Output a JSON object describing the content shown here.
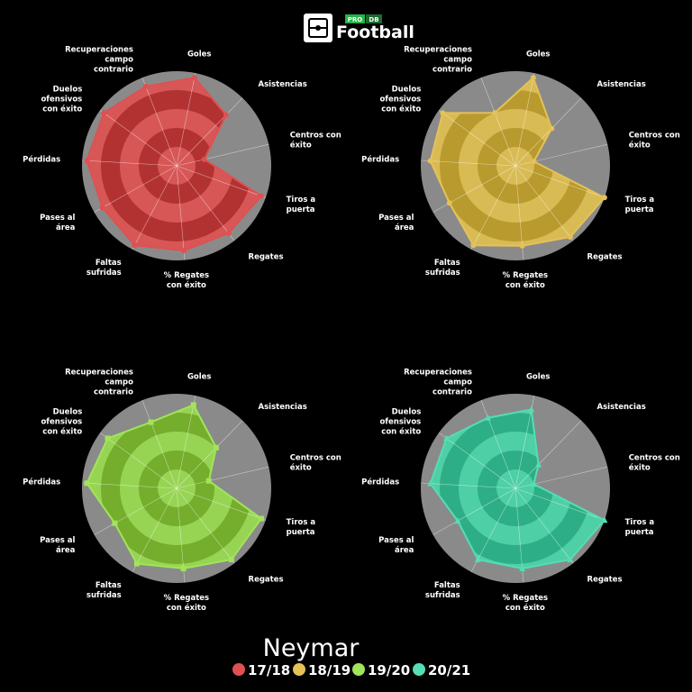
{
  "logo": {
    "pro": "PRO",
    "db": "DB",
    "name": "Football",
    "icon": "field-icon"
  },
  "player": "Neymar",
  "colors": {
    "background": "#000000",
    "track": "#8a8a8a",
    "spokes": "#ffffff"
  },
  "chart_data": {
    "type": "radar",
    "axes": [
      "Goles",
      "Asistencias",
      "Centros con éxito",
      "Tiros a puerta",
      "Regates",
      "% Regates con éxito",
      "Faltas sufridas",
      "Pases al área",
      "Pérdidas",
      "Duelos ofensivos con éxito",
      "Recuperaciones campo contrario"
    ],
    "range": [
      0,
      100
    ],
    "grid": true,
    "legend_position": "bottom",
    "series": [
      {
        "name": "17/18",
        "color": "#e05050",
        "fill_dark": "#b23232",
        "fill_light": "#d75757",
        "values": [
          95,
          75,
          30,
          95,
          90,
          90,
          95,
          90,
          95,
          95,
          90
        ]
      },
      {
        "name": "18/19",
        "color": "#e5c158",
        "fill_dark": "#b89a2e",
        "fill_light": "#d9bb55",
        "values": [
          95,
          55,
          20,
          100,
          95,
          85,
          95,
          80,
          90,
          95,
          60
        ]
      },
      {
        "name": "19/20",
        "color": "#a2e45a",
        "fill_dark": "#75ad2c",
        "fill_light": "#97d454",
        "values": [
          90,
          60,
          35,
          95,
          95,
          85,
          90,
          75,
          95,
          90,
          75
        ]
      },
      {
        "name": "20/21",
        "color": "#55ddb5",
        "fill_dark": "#2eae86",
        "fill_light": "#4ecfa5",
        "values": [
          85,
          35,
          20,
          100,
          95,
          85,
          85,
          70,
          90,
          90,
          80
        ]
      }
    ]
  }
}
